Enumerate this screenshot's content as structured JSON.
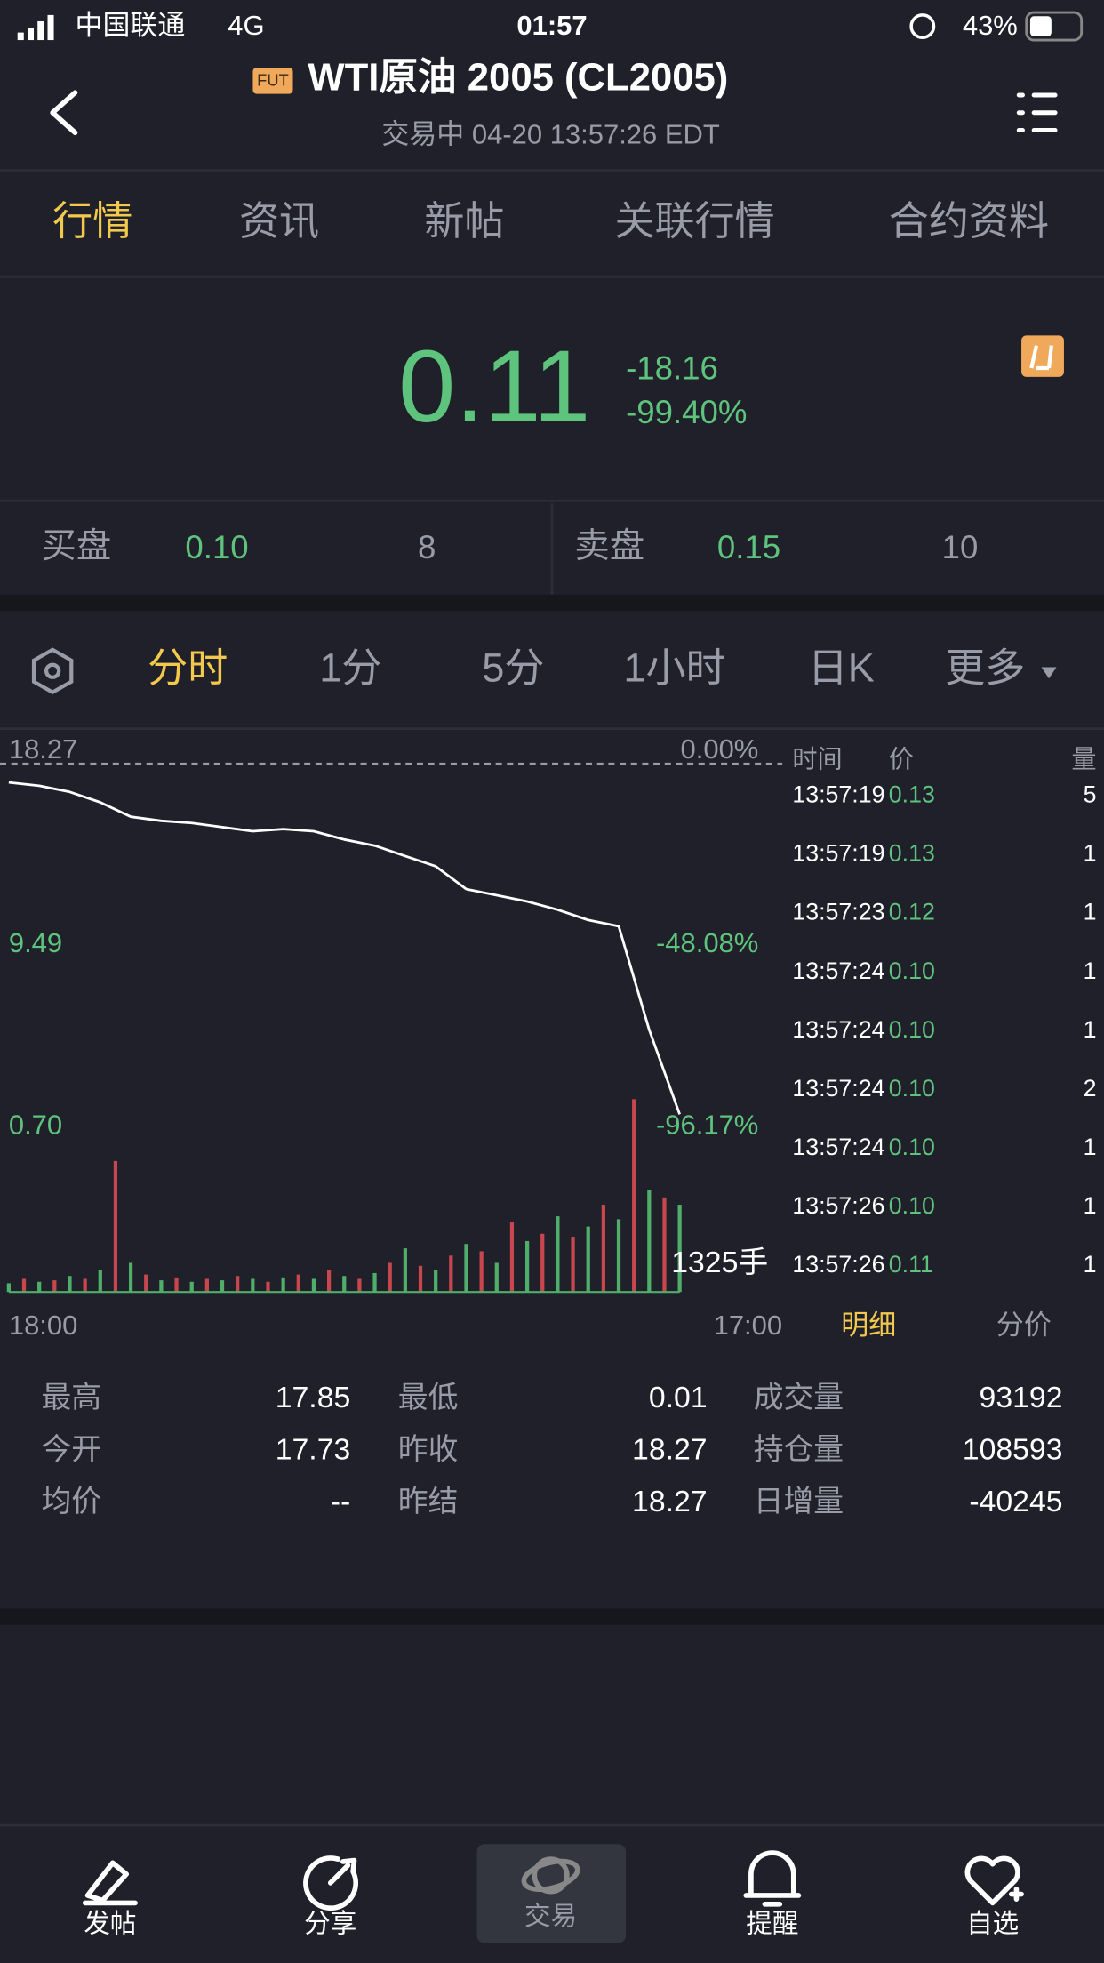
{
  "status_bar": {
    "carrier": "中国联通",
    "network": "4G",
    "time": "01:57",
    "battery": "43%"
  },
  "header": {
    "badge": "FUT",
    "title": "WTI原油 2005 (CL2005)",
    "subtitle": "交易中 04-20 13:57:26 EDT"
  },
  "tabs": [
    "行情",
    "资讯",
    "新帖",
    "关联行情",
    "合约资料"
  ],
  "quote": {
    "price": "0.11",
    "change": "-18.16",
    "change_percent": "-99.40%"
  },
  "order_book": {
    "bid_label": "买盘",
    "bid_price": "0.10",
    "bid_size": "8",
    "ask_label": "卖盘",
    "ask_price": "0.15",
    "ask_size": "10"
  },
  "periods": [
    "分时",
    "1分",
    "5分",
    "1小时",
    "日K",
    "更多"
  ],
  "minute_chart": {
    "ylim": [
      0.7,
      18.27
    ],
    "yticks": [
      {
        "value": 18.27,
        "label": "18.27"
      },
      {
        "value": 9.49,
        "label": "9.49"
      },
      {
        "value": 0.7,
        "label": "0.70"
      }
    ],
    "percent_labels": [
      "0.00%",
      "-48.08%",
      "-96.17%"
    ],
    "prices": [
      17.36,
      17.2,
      16.9,
      16.4,
      15.7,
      15.5,
      15.4,
      15.2,
      15.0,
      15.1,
      15.0,
      14.6,
      14.3,
      13.8,
      13.3,
      12.2,
      11.9,
      11.6,
      11.2,
      10.7,
      10.4,
      5.4,
      1.3
    ],
    "volumes": [
      60,
      90,
      70,
      80,
      110,
      90,
      150,
      900,
      200,
      120,
      80,
      100,
      70,
      90,
      80,
      110,
      90,
      70,
      100,
      120,
      90,
      150,
      110,
      90,
      130,
      200,
      300,
      180,
      150,
      250,
      330,
      280,
      200,
      480,
      350,
      400,
      520,
      380,
      450,
      600,
      500,
      1325,
      700,
      650,
      600
    ],
    "volume_colors": [
      "#4fae6a",
      "#c8474f"
    ],
    "line_color": "#ffffff",
    "volume_label": "1325手",
    "x_start": "18:00",
    "x_end": "17:00"
  },
  "trades": {
    "columns": [
      "时间",
      "价",
      "量"
    ],
    "rows": [
      [
        "13:57:19",
        "0.13",
        "5"
      ],
      [
        "13:57:19",
        "0.13",
        "1"
      ],
      [
        "13:57:23",
        "0.12",
        "1"
      ],
      [
        "13:57:24",
        "0.10",
        "1"
      ],
      [
        "13:57:24",
        "0.10",
        "1"
      ],
      [
        "13:57:24",
        "0.10",
        "2"
      ],
      [
        "13:57:24",
        "0.10",
        "1"
      ],
      [
        "13:57:26",
        "0.10",
        "1"
      ],
      [
        "13:57:26",
        "0.11",
        "1"
      ]
    ]
  },
  "detail_tabs": [
    "明细",
    "分价"
  ],
  "stats": [
    [
      [
        "最高",
        "17.85"
      ],
      [
        "最低",
        "0.01"
      ],
      [
        "成交量",
        "93192"
      ]
    ],
    [
      [
        "今开",
        "17.73"
      ],
      [
        "昨收",
        "18.27"
      ],
      [
        "持仓量",
        "108593"
      ]
    ],
    [
      [
        "均价",
        "--"
      ],
      [
        "昨结",
        "18.27"
      ],
      [
        "日增量",
        "-40245"
      ]
    ]
  ],
  "bottom_nav": [
    "发帖",
    "分享",
    "交易",
    "提醒",
    "自选"
  ]
}
